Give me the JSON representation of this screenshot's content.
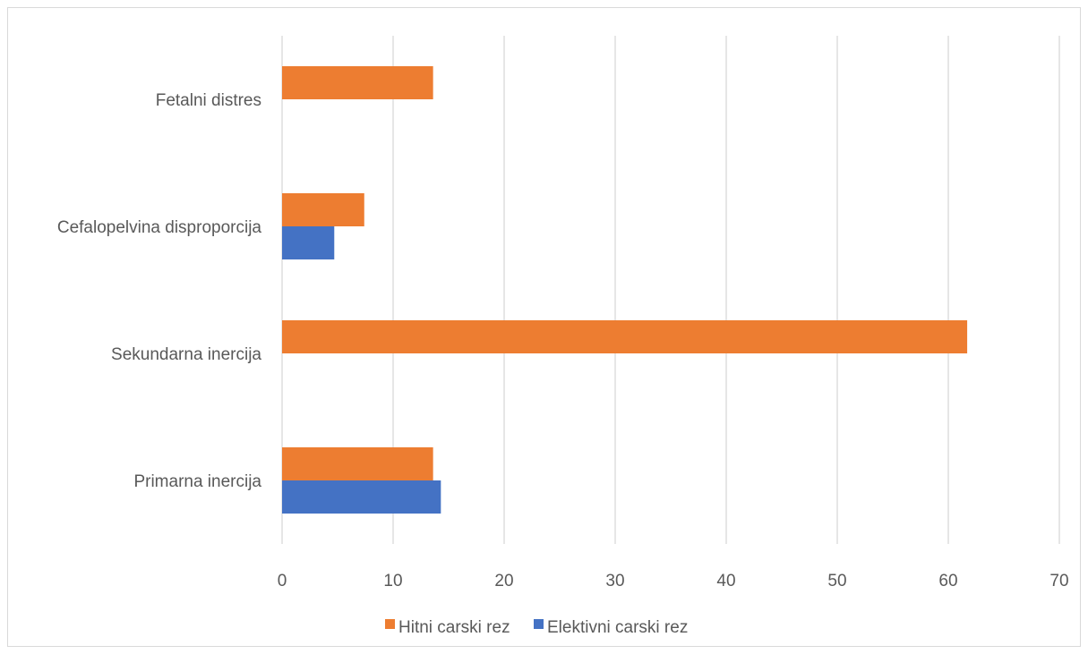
{
  "chart_data": {
    "type": "bar",
    "orientation": "horizontal",
    "title": "",
    "xlabel": "",
    "ylabel": "",
    "categories": [
      "Primarna inercija",
      "Sekundarna inercija",
      "Cefalopelvina disproporcija",
      "Fetalni distres"
    ],
    "series": [
      {
        "name": "Elektivni carski rez",
        "color": "#4472c4",
        "values": [
          14.3,
          0,
          4.7,
          0
        ]
      },
      {
        "name": "Hitni carski rez",
        "color": "#ed7d31",
        "values": [
          13.6,
          61.7,
          7.4,
          13.6
        ]
      }
    ],
    "xlim": [
      0,
      70
    ],
    "xticks": [
      0,
      10,
      20,
      30,
      40,
      50,
      60,
      70
    ],
    "grid": "vertical",
    "legend_position": "bottom",
    "legend_order": [
      "Hitni carski rez",
      "Elektivni carski rez"
    ]
  }
}
